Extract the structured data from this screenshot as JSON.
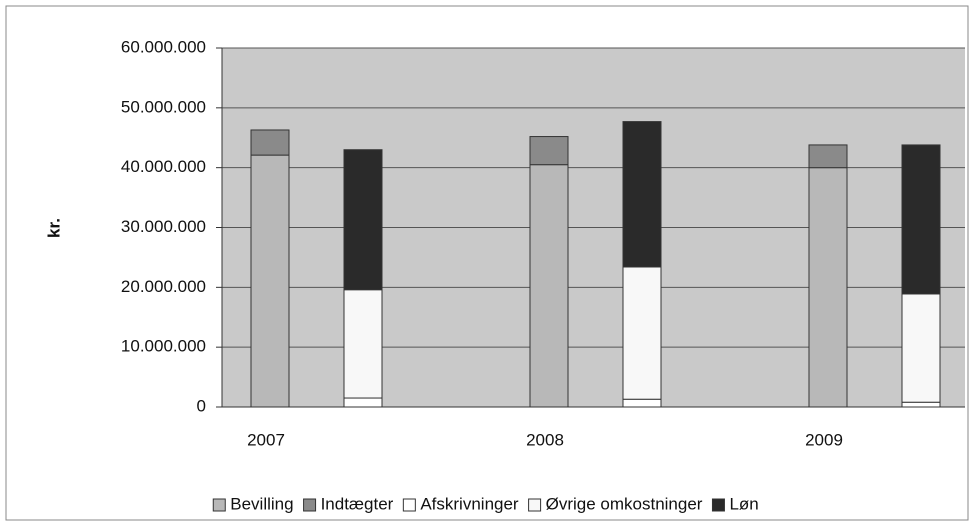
{
  "chart_data": {
    "type": "bar",
    "ylabel": "kr.",
    "categories": [
      "2007",
      "2008",
      "2009"
    ],
    "series": [
      {
        "name": "Bevilling",
        "color": "#b8b8b8",
        "stack": 0,
        "values": [
          42100000,
          40500000,
          40000000
        ]
      },
      {
        "name": "Indtægter",
        "color": "#8a8a8a",
        "stack": 0,
        "values": [
          4200000,
          4700000,
          3800000
        ]
      },
      {
        "name": "Afskrivninger",
        "color": "#ffffff",
        "stack": 1,
        "values": [
          1500000,
          1300000,
          800000
        ]
      },
      {
        "name": "Øvrige omkostninger",
        "color": "#f8f8f8",
        "stack": 1,
        "values": [
          18100000,
          22100000,
          18100000
        ]
      },
      {
        "name": "Løn",
        "color": "#2a2a2a",
        "stack": 1,
        "values": [
          23400000,
          24300000,
          24900000
        ]
      }
    ],
    "ylim": [
      0,
      60000000
    ],
    "yticks": [
      0,
      {
        "value": 10000000,
        "label": "10.000.000"
      },
      {
        "value": 20000000,
        "label": "20.000.000"
      },
      {
        "value": 30000000,
        "label": "30.000.000"
      },
      {
        "value": 40000000,
        "label": "40.000.000"
      },
      {
        "value": 50000000,
        "label": "50.000.000"
      },
      {
        "value": 60000000,
        "label": "60.000.000"
      }
    ],
    "grid": true
  }
}
